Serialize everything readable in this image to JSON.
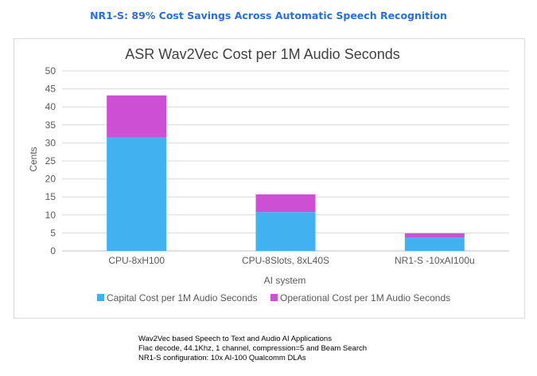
{
  "headline": "NR1-S: 89% Cost Savings Across Automatic Speech Recognition",
  "chart_data": {
    "type": "bar",
    "stacked": true,
    "title": "ASR Wav2Vec Cost per 1M Audio Seconds",
    "xlabel": "AI system",
    "ylabel": "Cents",
    "ylim": [
      0,
      50
    ],
    "yticks": [
      0,
      5,
      10,
      15,
      20,
      25,
      30,
      35,
      40,
      45,
      50
    ],
    "grid": true,
    "legend_position": "bottom",
    "categories": [
      "CPU-8xH100",
      "CPU-8Slots, 8xL40S",
      "NR1-S -10xAI100u"
    ],
    "series": [
      {
        "name": "Capital Cost per 1M Audio Seconds",
        "color": "#41b2ef",
        "values": [
          31.5,
          10.8,
          3.7
        ]
      },
      {
        "name": "Operational Cost per 1M Audio Seconds",
        "color": "#cc4fd4",
        "values": [
          11.7,
          4.9,
          1.2
        ]
      }
    ]
  },
  "notes": [
    "Wav2Vec based Speech to Text  and Audio AI Applications",
    "Flac decode, 44.1Khz, 1 channel, compression=5 and Beam Search",
    "NR1-S configuration: 10x AI-100 Qualcomm DLAs"
  ]
}
